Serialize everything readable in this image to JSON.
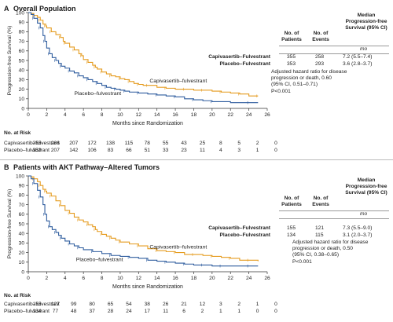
{
  "panels": [
    {
      "letter": "A",
      "title": "Overall Population",
      "table": {
        "headers": [
          "No. of Patients",
          "No. of Events",
          "Median Progression-free Survival (95% CI)"
        ],
        "unit": "mo",
        "rows": [
          {
            "label": "Capivasertib–Fulvestrant",
            "patients": "355",
            "events": "258",
            "median": "7.2 (5.5–7.4)"
          },
          {
            "label": "Placebo–Fulvestrant",
            "patients": "353",
            "events": "293",
            "median": "3.6 (2.8–3.7)"
          }
        ],
        "note": [
          "Adjusted hazard ratio for disease",
          "progression or death, 0.60",
          "(95% CI, 0.51–0.71)",
          "P<0.001"
        ]
      },
      "risk": {
        "title": "No. at Risk",
        "rows": [
          {
            "label": "Capivasertib–fulvestrant",
            "values": [
              "355",
              "266",
              "207",
              "172",
              "138",
              "115",
              "78",
              "55",
              "43",
              "25",
              "8",
              "5",
              "2",
              "0"
            ]
          },
          {
            "label": "Placebo–fulvestrant",
            "values": [
              "353",
              "207",
              "142",
              "106",
              "83",
              "66",
              "51",
              "33",
              "23",
              "11",
              "4",
              "3",
              "1",
              "0"
            ]
          }
        ]
      }
    },
    {
      "letter": "B",
      "title": "Patients with AKT Pathway–Altered Tumors",
      "table": {
        "headers": [
          "No. of Patients",
          "No. of Events",
          "Median Progression-free Survival (95% CI)"
        ],
        "unit": "mo",
        "rows": [
          {
            "label": "Capivasertib–Fulvestrant",
            "patients": "155",
            "events": "121",
            "median": "7.3 (5.5–9.0)"
          },
          {
            "label": "Placebo–Fulvestrant",
            "patients": "134",
            "events": "115",
            "median": "3.1 (2.0–3.7)"
          }
        ],
        "note": [
          "Adjusted hazard ratio for disease",
          "progression or death, 0.50",
          "(95% CI, 0.38–0.65)",
          "P<0.001"
        ]
      },
      "risk": {
        "title": "No. at Risk",
        "rows": [
          {
            "label": "Capivasertib–fulvestrant",
            "values": [
              "155",
              "127",
              "99",
              "80",
              "65",
              "54",
              "38",
              "26",
              "21",
              "12",
              "3",
              "2",
              "1",
              "0"
            ]
          },
          {
            "label": "Placebo–fulvestrant",
            "values": [
              "134",
              "77",
              "48",
              "37",
              "28",
              "24",
              "17",
              "11",
              "6",
              "2",
              "1",
              "1",
              "0",
              "0"
            ]
          }
        ]
      }
    }
  ],
  "chart_data": [
    {
      "type": "line",
      "step": true,
      "xlabel": "Months since Randomization",
      "ylabel": "Progression-free Survival (%)",
      "xlim": [
        0,
        26
      ],
      "ylim": [
        0,
        100
      ],
      "xticks": [
        0,
        2,
        4,
        6,
        8,
        10,
        12,
        14,
        16,
        18,
        20,
        22,
        24,
        26
      ],
      "yticks": [
        0,
        10,
        20,
        30,
        40,
        50,
        60,
        70,
        80,
        90,
        100
      ],
      "grid": false,
      "series": [
        {
          "name": "Capivasertib–fulvestrant",
          "color": "#e59b1e",
          "label_at": [
            13.2,
            27
          ],
          "x": [
            0,
            0.3,
            0.6,
            1,
            1.3,
            1.6,
            1.9,
            2,
            2.5,
            3,
            3.5,
            3.8,
            4,
            4.5,
            5,
            5.5,
            5.8,
            6,
            6.5,
            7,
            7.3,
            7.5,
            8,
            8.5,
            9,
            9.5,
            10,
            10.5,
            11,
            11.5,
            12,
            12.5,
            13,
            14,
            15,
            16,
            17,
            18,
            19,
            20,
            21,
            22,
            23,
            24,
            25
          ],
          "y": [
            100,
            99,
            97,
            95,
            92,
            88,
            86,
            84,
            80,
            77,
            74,
            70,
            68,
            64,
            61,
            57,
            55,
            51,
            48,
            45,
            43,
            41,
            38,
            36,
            34,
            33,
            31,
            30,
            28,
            26,
            25,
            24,
            24,
            22,
            21,
            20,
            20,
            19,
            19,
            18,
            17,
            16,
            15,
            13,
            13
          ]
        },
        {
          "name": "Placebo–fulvestrant",
          "color": "#2e5c9e",
          "label_at": [
            5.0,
            14
          ],
          "x": [
            0,
            0.3,
            0.6,
            1,
            1.3,
            1.6,
            1.8,
            2,
            2.3,
            2.6,
            3,
            3.3,
            3.6,
            4,
            4.5,
            5,
            5.5,
            6,
            6.5,
            7,
            7.5,
            8,
            8.5,
            9,
            9.5,
            10,
            10.5,
            11,
            12,
            13,
            14,
            15,
            16,
            17,
            18,
            19,
            20,
            22,
            24,
            25
          ],
          "y": [
            100,
            98,
            94,
            89,
            84,
            76,
            70,
            63,
            57,
            53,
            50,
            47,
            44,
            42,
            39,
            37,
            34,
            32,
            30,
            28,
            26,
            24,
            22,
            21,
            20,
            19,
            18,
            17,
            16,
            15,
            14,
            13,
            12,
            10,
            9,
            8,
            7,
            6,
            6,
            6
          ]
        }
      ]
    },
    {
      "type": "line",
      "step": true,
      "xlabel": "Months since Randomization",
      "ylabel": "Progression-free Survival (%)",
      "xlim": [
        0,
        26
      ],
      "ylim": [
        0,
        100
      ],
      "xticks": [
        0,
        2,
        4,
        6,
        8,
        10,
        12,
        14,
        16,
        18,
        20,
        22,
        24,
        26
      ],
      "yticks": [
        0,
        10,
        20,
        30,
        40,
        50,
        60,
        70,
        80,
        90,
        100
      ],
      "grid": false,
      "series": [
        {
          "name": "Capivasertib–fulvestrant",
          "color": "#e59b1e",
          "label_at": [
            13.2,
            24
          ],
          "x": [
            0,
            0.3,
            0.6,
            1,
            1.3,
            1.6,
            1.9,
            2,
            2.5,
            3,
            3.5,
            4,
            4.5,
            5,
            5.5,
            6,
            6.5,
            7,
            7.3,
            7.5,
            8,
            8.5,
            9,
            9.5,
            10,
            11,
            12,
            13,
            14,
            15,
            16,
            17,
            18,
            19,
            20,
            21,
            22,
            23,
            24,
            25
          ],
          "y": [
            100,
            99,
            97,
            94,
            90,
            86,
            84,
            82,
            79,
            74,
            69,
            64,
            61,
            57,
            54,
            52,
            49,
            47,
            44,
            42,
            39,
            37,
            35,
            33,
            31,
            29,
            27,
            24,
            22,
            21,
            20,
            18,
            18,
            17,
            16,
            15,
            14,
            12,
            12,
            11
          ]
        },
        {
          "name": "Placebo–fulvestrant",
          "color": "#2e5c9e",
          "label_at": [
            5.2,
            11
          ],
          "x": [
            0,
            0.3,
            0.6,
            1,
            1.3,
            1.6,
            1.8,
            2,
            2.3,
            2.6,
            3,
            3.3,
            3.6,
            4,
            4.5,
            5,
            5.5,
            6,
            7,
            8,
            9,
            10,
            11,
            12,
            13,
            14,
            15,
            16,
            17,
            18,
            19,
            20,
            21,
            22,
            24,
            25
          ],
          "y": [
            100,
            97,
            92,
            85,
            78,
            70,
            60,
            53,
            47,
            44,
            41,
            38,
            35,
            32,
            29,
            27,
            25,
            23,
            21,
            19,
            17,
            16,
            15,
            14,
            12,
            11,
            10,
            9,
            8,
            7,
            7,
            6,
            6,
            6,
            6,
            6
          ]
        }
      ]
    }
  ]
}
